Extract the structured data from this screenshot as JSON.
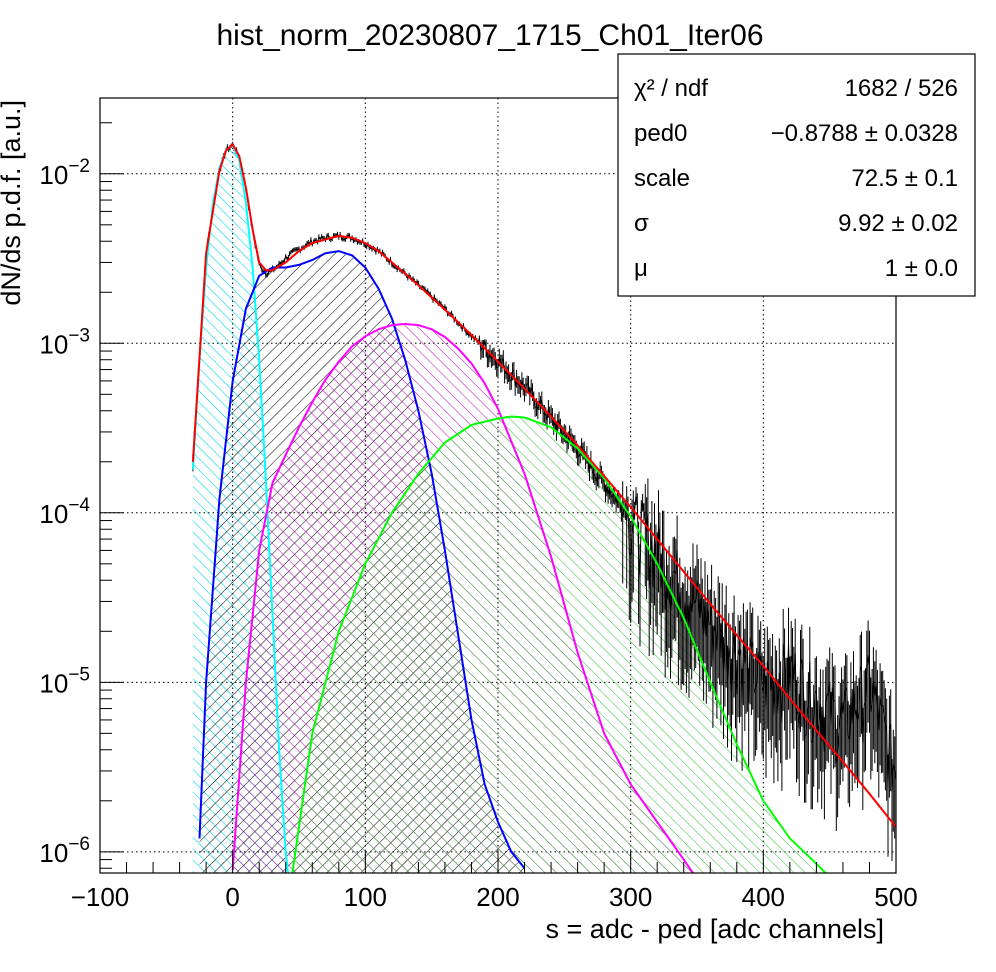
{
  "chart_data": {
    "type": "line",
    "title": "hist_norm_20230807_1715_Ch01_Iter06",
    "xlabel": "s = adc - ped [adc channels]",
    "ylabel": "dN/ds p.d.f. [a.u.]",
    "xlim": [
      -100,
      500
    ],
    "ylim": [
      7.5e-07,
      0.028
    ],
    "log_y": true,
    "grid": true,
    "x_ticks": [
      {
        "value": -100,
        "label": "−100"
      },
      {
        "value": 0,
        "label": "0"
      },
      {
        "value": 100,
        "label": "100"
      },
      {
        "value": 200,
        "label": "200"
      },
      {
        "value": 300,
        "label": "300"
      },
      {
        "value": 400,
        "label": "400"
      },
      {
        "value": 500,
        "label": "500"
      }
    ],
    "y_ticks": [
      {
        "value": 0.01,
        "base": "10",
        "exp": "−2"
      },
      {
        "value": 0.001,
        "base": "10",
        "exp": "−3"
      },
      {
        "value": 0.0001,
        "base": "10",
        "exp": "−4"
      },
      {
        "value": 1e-05,
        "base": "10",
        "exp": "−5"
      },
      {
        "value": 1e-06,
        "base": "10",
        "exp": "−6"
      }
    ],
    "series": [
      {
        "color": "#000000",
        "kind": "data",
        "x": [
          -30,
          -20,
          -10,
          -5,
          0,
          5,
          10,
          15,
          20,
          25,
          30,
          35,
          40,
          50,
          60,
          70,
          80,
          90,
          100,
          110,
          120,
          140,
          160,
          180,
          200,
          220,
          240,
          260,
          280,
          300,
          320,
          340,
          360,
          380,
          400,
          420,
          440,
          460,
          480,
          500
        ],
        "y": [
          0.0002,
          0.0035,
          0.0105,
          0.0138,
          0.0148,
          0.0125,
          0.0082,
          0.0046,
          0.0029,
          0.0026,
          0.0027,
          0.0029,
          0.0032,
          0.0036,
          0.004,
          0.0042,
          0.0043,
          0.0042,
          0.0039,
          0.0035,
          0.003,
          0.0022,
          0.0016,
          0.0011,
          0.0008,
          0.00055,
          0.00036,
          0.00024,
          0.00015,
          9.5e-05,
          6e-05,
          3.7e-05,
          2.3e-05,
          1.6e-05,
          1e-05,
          1.2e-05,
          8e-06,
          6e-06,
          1e-05,
          3e-06
        ]
      },
      {
        "color": "#ff0000",
        "kind": "fit",
        "x": [
          -30,
          -20,
          -10,
          -5,
          0,
          5,
          10,
          15,
          20,
          25,
          30,
          40,
          50,
          60,
          70,
          80,
          90,
          100,
          110,
          120,
          140,
          160,
          180,
          200,
          220,
          240,
          260,
          280,
          300,
          320,
          340,
          360,
          380,
          400,
          420,
          440,
          460,
          480,
          500
        ],
        "y": [
          0.0002,
          0.0034,
          0.0104,
          0.0137,
          0.0149,
          0.0127,
          0.0083,
          0.0047,
          0.003,
          0.0027,
          0.0027,
          0.003,
          0.0035,
          0.0039,
          0.0041,
          0.0043,
          0.0042,
          0.0039,
          0.0035,
          0.003,
          0.0022,
          0.00158,
          0.00112,
          0.00078,
          0.00054,
          0.00037,
          0.00025,
          0.000165,
          0.000108,
          7e-05,
          4.5e-05,
          2.9e-05,
          1.9e-05,
          1.25e-05,
          8e-06,
          5.2e-06,
          3.4e-06,
          2.2e-06,
          1.4e-06
        ]
      },
      {
        "color": "#00ffff",
        "kind": "component",
        "hatch": "cyan",
        "x": [
          -30,
          -25,
          -20,
          -15,
          -10,
          -5,
          0,
          5,
          10,
          15,
          20,
          25,
          30,
          35,
          40,
          43
        ],
        "y": [
          0.00018,
          0.0008,
          0.0028,
          0.0066,
          0.0108,
          0.0138,
          0.0148,
          0.012,
          0.0068,
          0.0028,
          0.0008,
          0.00016,
          2.5e-05,
          4e-06,
          1e-06,
          6e-07
        ]
      },
      {
        "color": "#0000ff",
        "kind": "component",
        "hatch": "black",
        "x": [
          -25,
          -20,
          -10,
          0,
          10,
          20,
          30,
          40,
          50,
          60,
          70,
          80,
          90,
          100,
          110,
          120,
          130,
          140,
          150,
          160,
          170,
          180,
          190,
          200,
          210,
          220
        ],
        "y": [
          1.2e-06,
          1e-05,
          0.00012,
          0.0006,
          0.0016,
          0.0025,
          0.0028,
          0.0028,
          0.0029,
          0.0031,
          0.0034,
          0.0035,
          0.0033,
          0.0028,
          0.0021,
          0.0014,
          0.0008,
          0.0004,
          0.00017,
          6e-05,
          1.9e-05,
          6e-06,
          2.5e-06,
          1.5e-06,
          1e-06,
          8e-07
        ]
      },
      {
        "color": "#ff00ff",
        "kind": "component",
        "hatch": "magenta",
        "x": [
          0,
          10,
          20,
          30,
          40,
          50,
          60,
          70,
          80,
          90,
          100,
          110,
          120,
          130,
          140,
          150,
          160,
          170,
          180,
          190,
          200,
          220,
          240,
          260,
          280,
          300,
          320,
          340,
          347
        ],
        "y": [
          7.8e-07,
          1e-05,
          6e-05,
          0.00015,
          0.00022,
          0.00032,
          0.00045,
          0.00061,
          0.00078,
          0.00096,
          0.0011,
          0.00121,
          0.00128,
          0.0013,
          0.00128,
          0.00121,
          0.00109,
          0.00093,
          0.00076,
          0.00058,
          0.00041,
          0.00017,
          5.5e-05,
          1.5e-05,
          5e-06,
          2.5e-06,
          1.5e-06,
          9e-07,
          7.5e-07
        ]
      },
      {
        "color": "#00ff00",
        "kind": "component",
        "hatch": "green",
        "x": [
          45,
          60,
          80,
          100,
          120,
          140,
          160,
          180,
          200,
          210,
          220,
          240,
          260,
          280,
          300,
          320,
          340,
          360,
          380,
          400,
          420,
          440,
          447
        ],
        "y": [
          7.5e-07,
          5e-06,
          2e-05,
          5e-05,
          0.0001,
          0.00017,
          0.00026,
          0.00033,
          0.00036,
          0.00037,
          0.000365,
          0.00032,
          0.00024,
          0.00016,
          9.5e-05,
          5e-05,
          2.4e-05,
          1e-05,
          4.3e-06,
          2e-06,
          1.2e-06,
          8.5e-07,
          7.5e-07
        ]
      }
    ]
  },
  "stats": {
    "rows": [
      {
        "name": "χ² / ndf",
        "value": "1682 / 526"
      },
      {
        "name": "ped0",
        "value": "−0.8788 ± 0.0328"
      },
      {
        "name": "scale",
        "value": "72.5 ± 0.1"
      },
      {
        "name": "σ",
        "value": "9.92 ± 0.02"
      },
      {
        "name": "μ",
        "value": "1 ± 0.0"
      }
    ]
  }
}
